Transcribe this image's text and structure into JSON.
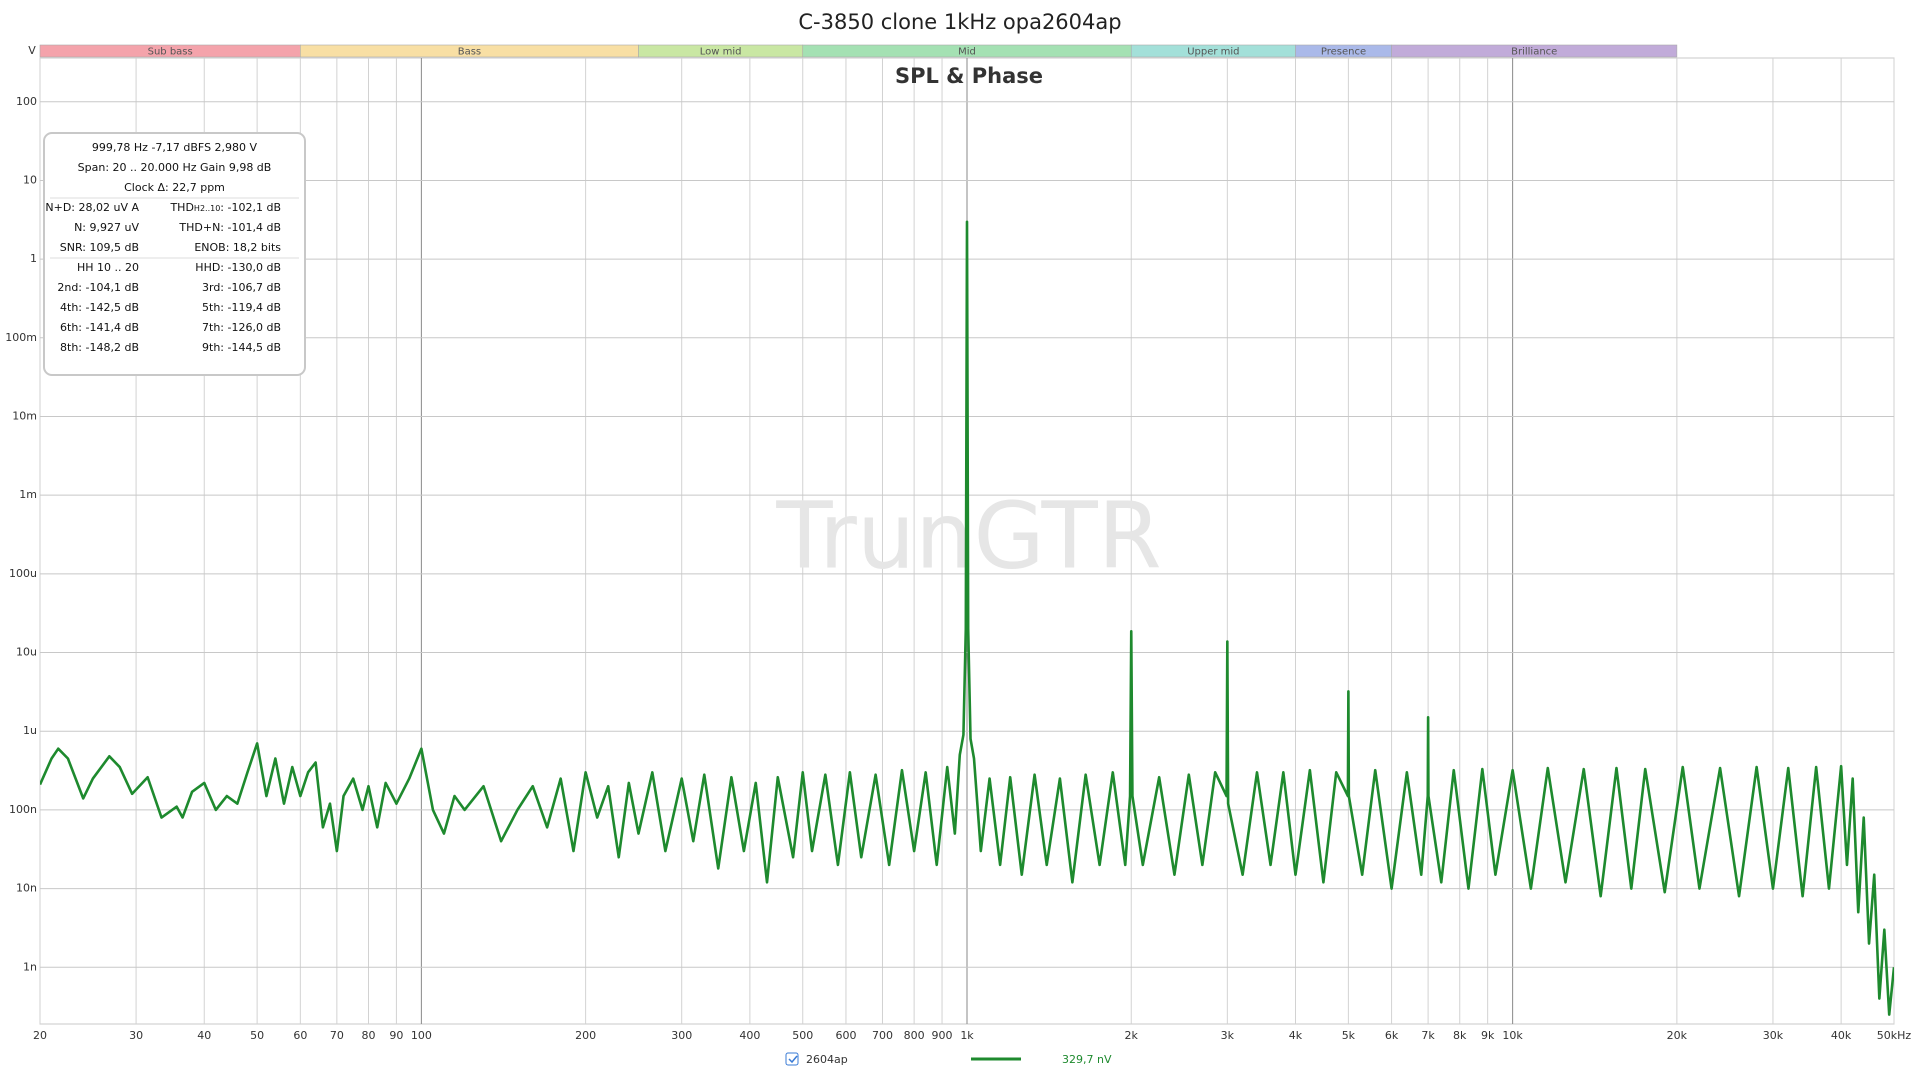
{
  "chart_data": {
    "type": "line",
    "title": "C-3850 clone 1kHz opa2604ap",
    "subtitle": "SPL & Phase",
    "watermark": "TrunGTR",
    "y_unit": "V",
    "xscale": "log",
    "yscale": "log",
    "grid": true,
    "xlim": [
      20,
      50000
    ],
    "ylim": [
      1.9e-10,
      360
    ],
    "xticks": [
      20,
      30,
      40,
      50,
      60,
      70,
      80,
      90,
      100,
      200,
      300,
      400,
      500,
      600,
      700,
      800,
      900,
      {
        "value": 1000,
        "label": "1k"
      },
      {
        "value": 2000,
        "label": "2k"
      },
      {
        "value": 3000,
        "label": "3k"
      },
      {
        "value": 4000,
        "label": "4k"
      },
      {
        "value": 5000,
        "label": "5k"
      },
      {
        "value": 6000,
        "label": "6k"
      },
      {
        "value": 7000,
        "label": "7k"
      },
      {
        "value": 8000,
        "label": "8k"
      },
      {
        "value": 9000,
        "label": "9k"
      },
      {
        "value": 10000,
        "label": "10k"
      },
      {
        "value": 20000,
        "label": "20k"
      },
      {
        "value": 30000,
        "label": "30k"
      },
      {
        "value": 40000,
        "label": "40k"
      },
      {
        "value": 50000,
        "label": "50kHz"
      }
    ],
    "yticks": [
      100,
      10,
      1,
      {
        "value": 0.1,
        "label": "100m"
      },
      {
        "value": 0.01,
        "label": "10m"
      },
      {
        "value": 0.001,
        "label": "1m"
      },
      {
        "value": 0.0001,
        "label": "100u"
      },
      {
        "value": 1e-05,
        "label": "10u"
      },
      {
        "value": 1e-06,
        "label": "1u"
      },
      {
        "value": 1e-07,
        "label": "100n"
      },
      {
        "value": 1e-08,
        "label": "10n"
      },
      {
        "value": 1e-09,
        "label": "1n"
      }
    ],
    "bands": [
      {
        "name": "Sub bass",
        "start": 20,
        "end": 60,
        "color": "#f4a3ab"
      },
      {
        "name": "Bass",
        "start": 60,
        "end": 250,
        "color": "#f8dfa4"
      },
      {
        "name": "Low mid",
        "start": 250,
        "end": 500,
        "color": "#c9e7a3"
      },
      {
        "name": "Mid",
        "start": 500,
        "end": 2000,
        "color": "#a4e1b3"
      },
      {
        "name": "Upper mid",
        "start": 2000,
        "end": 4000,
        "color": "#a3e0d9"
      },
      {
        "name": "Presence",
        "start": 4000,
        "end": 6000,
        "color": "#aab9e9"
      },
      {
        "name": "Brilliance",
        "start": 6000,
        "end": 20000,
        "color": "#c1abd9"
      }
    ],
    "x": [
      20,
      21,
      21.6,
      22.5,
      24,
      25,
      26.8,
      28,
      29.5,
      31.5,
      33.4,
      35.6,
      36.5,
      38,
      40,
      42,
      44,
      46,
      48,
      50,
      52,
      54,
      56,
      58,
      60,
      62,
      64,
      66,
      68,
      70,
      72,
      75,
      78,
      80,
      83,
      86,
      90,
      95,
      100,
      105,
      110,
      115,
      120,
      130,
      140,
      150,
      160,
      170,
      180,
      190,
      200,
      210,
      220,
      230,
      240,
      250,
      265,
      280,
      300,
      315,
      330,
      350,
      370,
      390,
      410,
      430,
      450,
      480,
      500,
      520,
      550,
      580,
      610,
      640,
      680,
      720,
      760,
      800,
      840,
      880,
      920,
      950,
      970,
      985,
      995,
      1000,
      1005,
      1015,
      1030,
      1060,
      1100,
      1150,
      1200,
      1260,
      1330,
      1400,
      1480,
      1560,
      1650,
      1750,
      1850,
      1950,
      1990,
      2000,
      2010,
      2100,
      2250,
      2400,
      2550,
      2700,
      2850,
      2990,
      3000,
      3010,
      3200,
      3400,
      3600,
      3800,
      4000,
      4250,
      4500,
      4750,
      4990,
      5000,
      5010,
      5300,
      5600,
      6000,
      6400,
      6800,
      6990,
      7000,
      7010,
      7400,
      7800,
      8300,
      8800,
      9300,
      10000,
      10800,
      11600,
      12500,
      13500,
      14500,
      15500,
      16500,
      17500,
      19000,
      20500,
      22000,
      24000,
      26000,
      28000,
      30000,
      32000,
      34000,
      36000,
      38000,
      40000,
      41000,
      42000,
      43000,
      44000,
      45000,
      46000,
      47000,
      48000,
      49000,
      50000
    ],
    "series": [
      {
        "name": "2604ap",
        "color": "#1e8a2e",
        "values": [
          2.1e-07,
          4.5e-07,
          6e-07,
          4.5e-07,
          1.4e-07,
          2.5e-07,
          4.8e-07,
          3.5e-07,
          1.6e-07,
          2.6e-07,
          8e-08,
          1.1e-07,
          8e-08,
          1.7e-07,
          2.2e-07,
          1e-07,
          1.5e-07,
          1.2e-07,
          3e-07,
          7e-07,
          1.5e-07,
          4.5e-07,
          1.2e-07,
          3.5e-07,
          1.5e-07,
          3e-07,
          4e-07,
          6e-08,
          1.2e-07,
          3e-08,
          1.5e-07,
          2.5e-07,
          1e-07,
          2e-07,
          6e-08,
          2.2e-07,
          1.2e-07,
          2.5e-07,
          6e-07,
          1e-07,
          5e-08,
          1.5e-07,
          1e-07,
          2e-07,
          4e-08,
          1e-07,
          2e-07,
          6e-08,
          2.5e-07,
          3e-08,
          3e-07,
          8e-08,
          2e-07,
          2.5e-08,
          2.2e-07,
          5e-08,
          3e-07,
          3e-08,
          2.5e-07,
          4e-08,
          2.8e-07,
          1.8e-08,
          2.6e-07,
          3e-08,
          2.2e-07,
          1.2e-08,
          2.6e-07,
          2.5e-08,
          3e-07,
          3e-08,
          2.8e-07,
          2e-08,
          3e-07,
          2.5e-08,
          2.8e-07,
          2e-08,
          3.2e-07,
          3e-08,
          3e-07,
          2e-08,
          3.5e-07,
          5e-08,
          5e-07,
          9e-07,
          2e-05,
          2.98,
          2e-05,
          8e-07,
          4.5e-07,
          3e-08,
          2.5e-07,
          2e-08,
          2.6e-07,
          1.5e-08,
          2.8e-07,
          2e-08,
          2.5e-07,
          1.2e-08,
          2.8e-07,
          2e-08,
          3e-07,
          2e-08,
          1.5e-07,
          1.86e-05,
          1.5e-07,
          2e-08,
          2.6e-07,
          1.5e-08,
          2.8e-07,
          2e-08,
          3e-07,
          1.5e-07,
          1.38e-05,
          1.2e-07,
          1.5e-08,
          3e-07,
          2e-08,
          3e-07,
          1.5e-08,
          3.2e-07,
          1.2e-08,
          3e-07,
          1.5e-07,
          3.2e-06,
          1.5e-07,
          1.5e-08,
          3.2e-07,
          1e-08,
          3e-07,
          1.5e-08,
          1.5e-07,
          1.5e-06,
          1.5e-07,
          1.2e-08,
          3.2e-07,
          1e-08,
          3.3e-07,
          1.5e-08,
          3.2e-07,
          1e-08,
          3.4e-07,
          1.2e-08,
          3.3e-07,
          8e-09,
          3.4e-07,
          1e-08,
          3.3e-07,
          9e-09,
          3.5e-07,
          1e-08,
          3.4e-07,
          8e-09,
          3.5e-07,
          1e-08,
          3.4e-07,
          8e-09,
          3.5e-07,
          1e-08,
          3.6e-07,
          2e-08,
          2.5e-07,
          5e-09,
          8e-08,
          2e-09,
          1.5e-08,
          4e-10,
          3e-09,
          2.5e-10,
          1e-09
        ]
      }
    ],
    "legend_readout": "329,7 nV",
    "info_box": {
      "rows": [
        {
          "center": "999,78 Hz  -7,17 dBFS  2,980 V"
        },
        {
          "center": "Span: 20 .. 20.000 Hz   Gain 9,98 dB"
        },
        {
          "center": "Clock Δ: 22,7 ppm"
        },
        {
          "left": "N+D: 28,02 uV A",
          "right": [
            "THD",
            "H2..10",
            ": -102,1 dB"
          ]
        },
        {
          "left": "N: 9,927 uV",
          "right": "THD+N: -101,4 dB"
        },
        {
          "left": "SNR:  109,5 dB",
          "right": "ENOB:  18,2 bits"
        },
        {
          "left": "HH 10 .. 20",
          "right": "HHD: -130,0 dB"
        },
        {
          "left": "2nd: -104,1 dB",
          "right": "3rd: -106,7 dB"
        },
        {
          "left": "4th: -142,5 dB",
          "right": "5th: -119,4 dB"
        },
        {
          "left": "6th: -141,4 dB",
          "right": "7th: -126,0 dB"
        },
        {
          "left": "8th: -148,2 dB",
          "right": "9th: -144,5 dB"
        }
      ]
    }
  }
}
